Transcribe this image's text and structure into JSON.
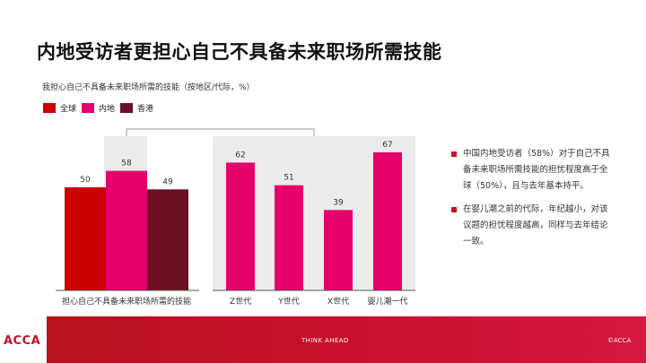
{
  "title": "内地受访者更担心自己不具备未来职场所需技能",
  "colors": {
    "global": "#cc0000",
    "mainland": "#e5006a",
    "hongkong": "#6b0f24",
    "panel_bg": "#ececec",
    "accent": "#c8102e"
  },
  "chart_data": [
    {
      "type": "bar",
      "title": "我担心自己不具备未来职场所需的技能（按地区/代际，%）",
      "legend": [
        "全球",
        "内地",
        "香港"
      ],
      "categories": [
        "担心自己不具备未来职场所需的技能"
      ],
      "series": [
        {
          "name": "全球",
          "values": [
            50
          ]
        },
        {
          "name": "内地",
          "values": [
            58
          ]
        },
        {
          "name": "香港",
          "values": [
            49
          ]
        }
      ],
      "ylim": [
        0,
        100
      ]
    },
    {
      "type": "bar",
      "categories": [
        "Z世代",
        "Y世代",
        "X世代",
        "婴儿潮一代"
      ],
      "series": [
        {
          "name": "内地",
          "values": [
            62,
            51,
            39,
            67
          ]
        }
      ],
      "ylim": [
        0,
        100
      ]
    }
  ],
  "bullets": [
    "中国内地受访者（58%）对于自己不具备未来职场所需技能的担忧程度高于全球（50%），且与去年基本持平。",
    "在婴儿潮之前的代际，年纪越小，对该议题的担忧程度越高，同样与去年结论一致。"
  ],
  "footer": {
    "logo": "ACCA",
    "center": "THINK AHEAD",
    "right": "©ACCA"
  }
}
